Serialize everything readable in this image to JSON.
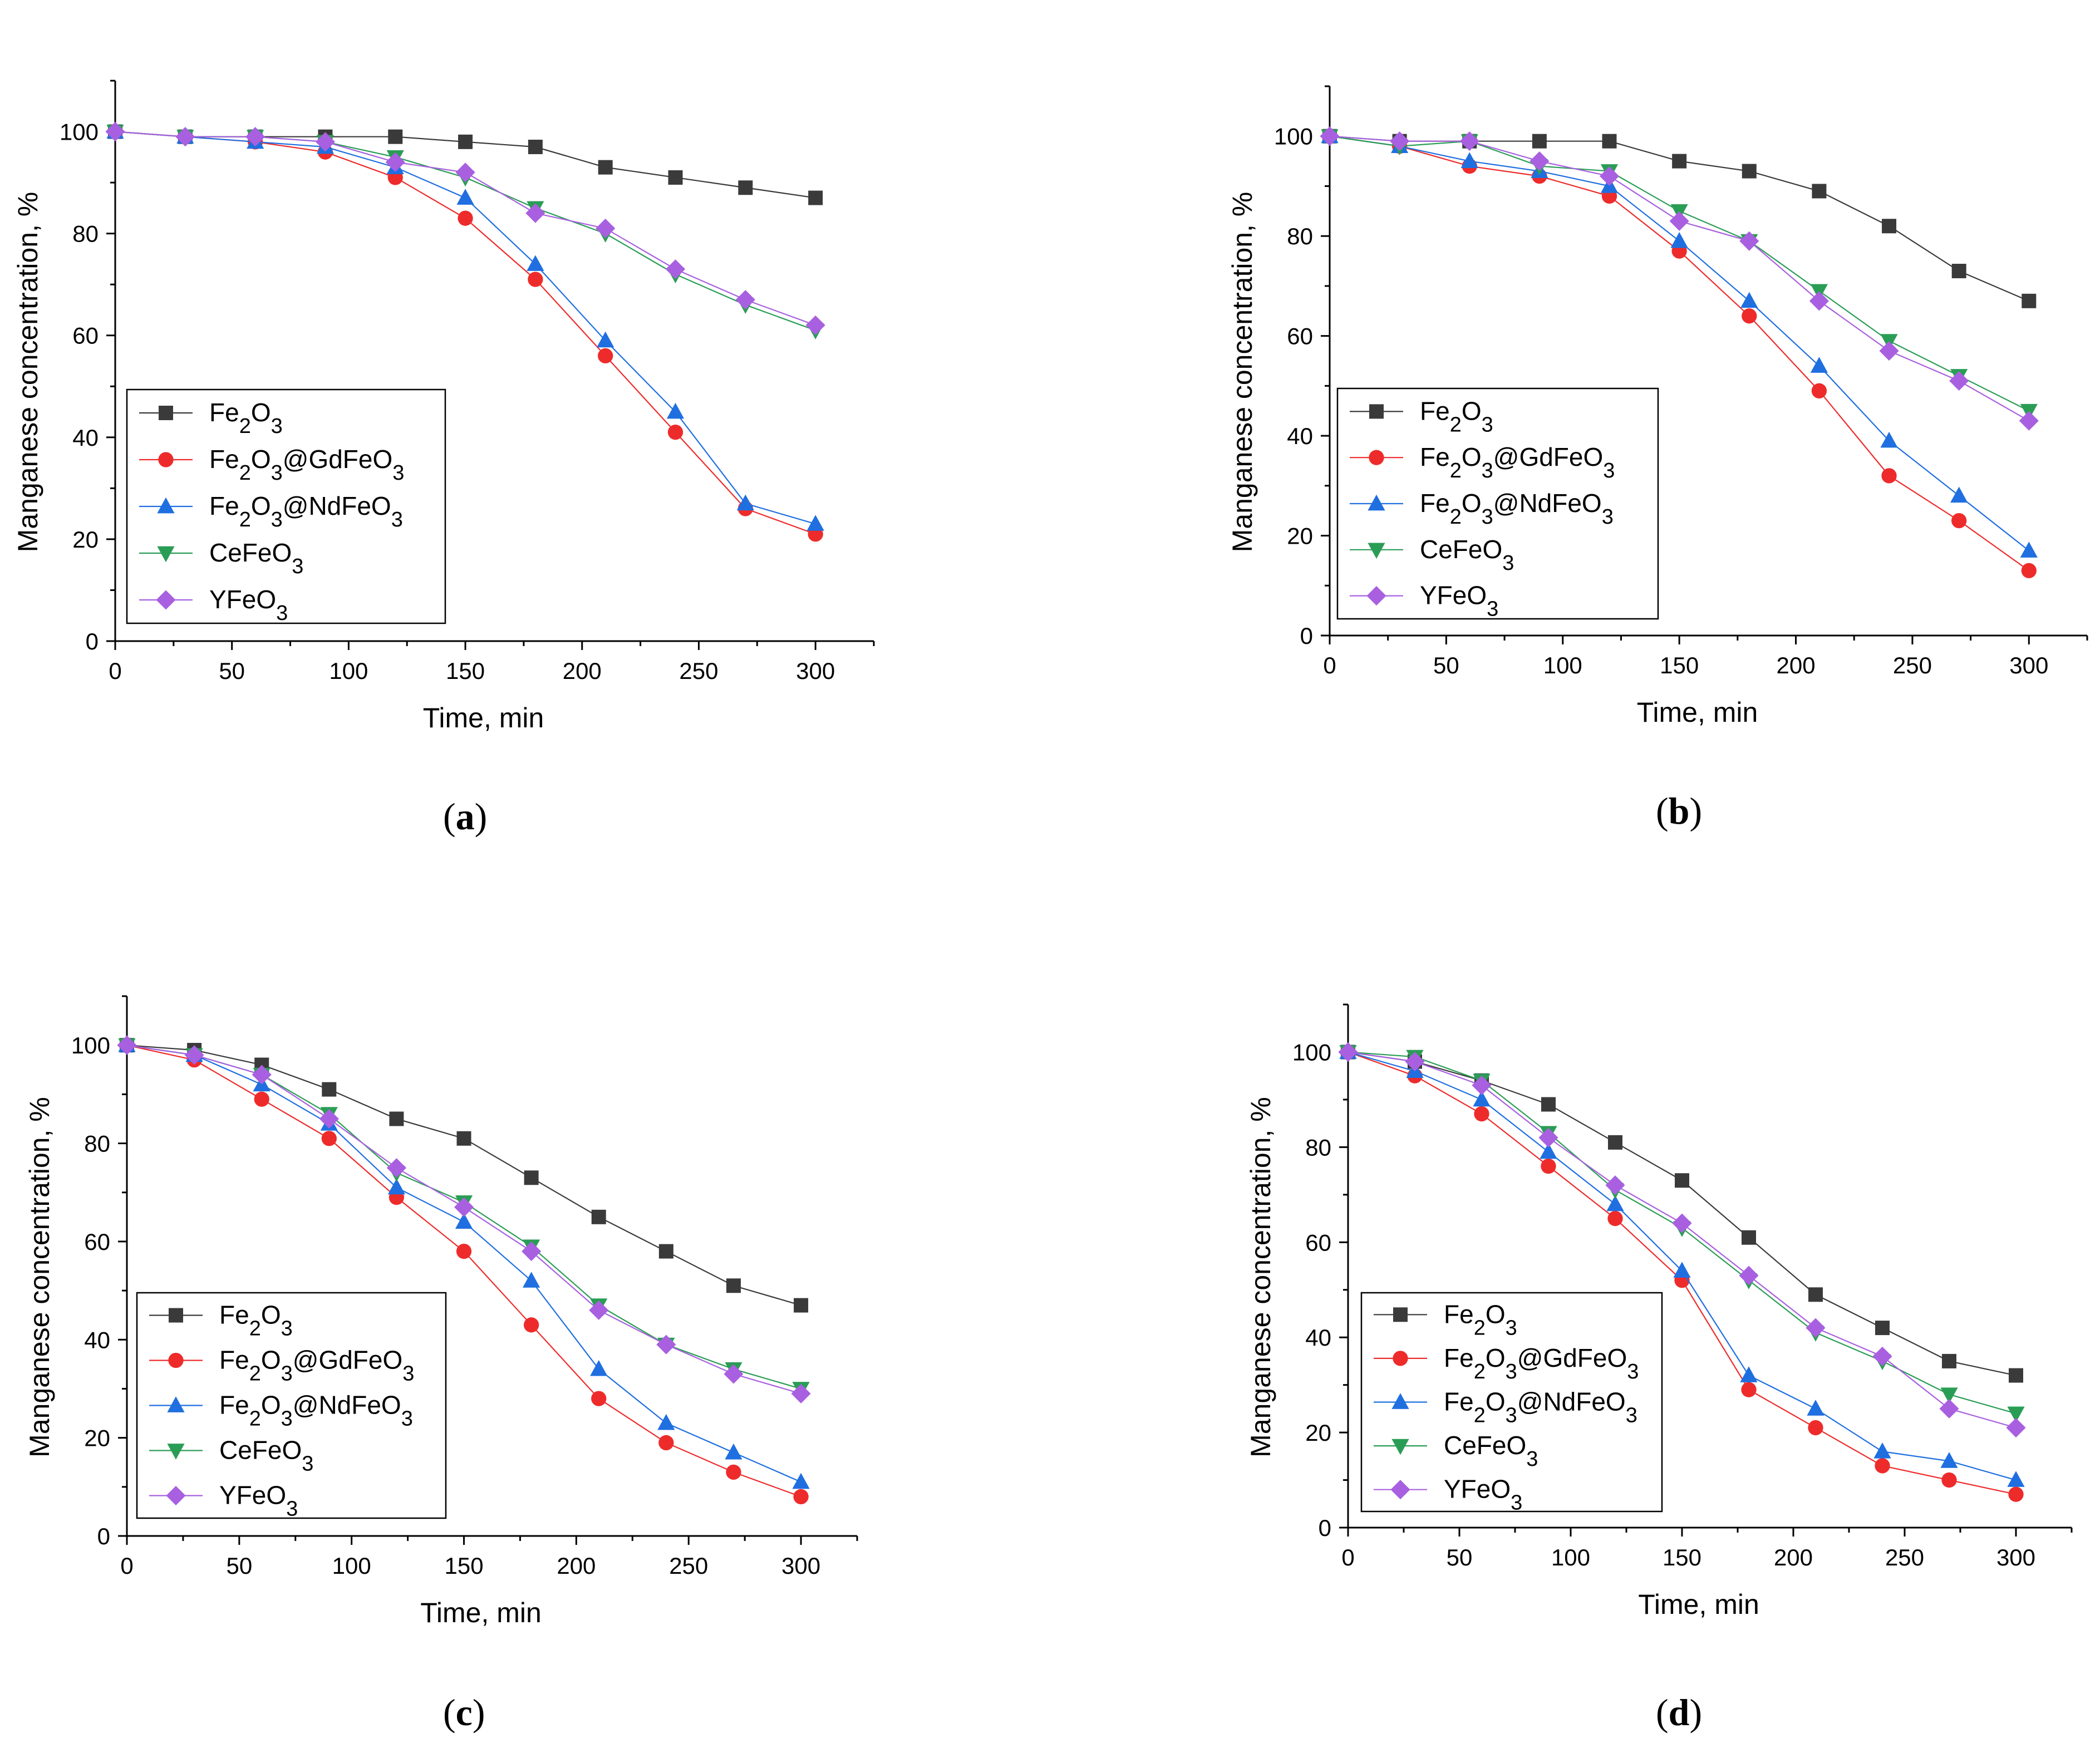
{
  "figure": {
    "captions": [
      "(a)",
      "(b)",
      "(c)",
      "(d)"
    ],
    "caption_letters": [
      "a",
      "b",
      "c",
      "d"
    ],
    "colors": {
      "Fe2O3": "#3a3a3a",
      "Fe2O3@GdFeO3": "#ee2b2b",
      "Fe2O3@NdFeO3": "#1f6fe0",
      "CeFeO3": "#2a9d55",
      "YFeO3": "#a860e0"
    }
  },
  "chart_data": [
    {
      "type": "line",
      "panel": "a",
      "xlabel": "Time, min",
      "ylabel": "Manganese concentration, %",
      "xlim": [
        0,
        325
      ],
      "ylim": [
        0,
        110
      ],
      "xticks": [
        0,
        50,
        100,
        150,
        200,
        250,
        300
      ],
      "yticks": [
        0,
        20,
        40,
        60,
        80,
        100
      ],
      "legend_position": "lower-left",
      "x": [
        0,
        30,
        60,
        90,
        120,
        150,
        180,
        210,
        240,
        270,
        300
      ],
      "series": [
        {
          "key": "Fe2O3",
          "name": "Fe2O3",
          "marker": "square",
          "values": [
            100,
            99,
            99,
            99,
            99,
            98,
            97,
            93,
            91,
            89,
            87
          ]
        },
        {
          "key": "Fe2O3@GdFeO3",
          "name": "Fe2O3@GdFeO3",
          "marker": "circle",
          "values": [
            100,
            99,
            98,
            96,
            91,
            83,
            71,
            56,
            41,
            26,
            21
          ]
        },
        {
          "key": "Fe2O3@NdFeO3",
          "name": "Fe2O3@NdFeO3",
          "marker": "triangle-up",
          "values": [
            100,
            99,
            98,
            97,
            93,
            87,
            74,
            59,
            45,
            27,
            23
          ]
        },
        {
          "key": "CeFeO3",
          "name": "CeFeO3",
          "marker": "triangle-down",
          "values": [
            100,
            99,
            99,
            98,
            95,
            91,
            85,
            80,
            72,
            66,
            61
          ]
        },
        {
          "key": "YFeO3",
          "name": "YFeO3",
          "marker": "diamond",
          "values": [
            100,
            99,
            99,
            98,
            94,
            92,
            84,
            81,
            73,
            67,
            62
          ]
        }
      ]
    },
    {
      "type": "line",
      "panel": "b",
      "xlabel": "Time, min",
      "ylabel": "Manganese concentration, %",
      "xlim": [
        0,
        325
      ],
      "ylim": [
        0,
        110
      ],
      "xticks": [
        0,
        50,
        100,
        150,
        200,
        250,
        300
      ],
      "yticks": [
        0,
        20,
        40,
        60,
        80,
        100
      ],
      "legend_position": "lower-left",
      "x": [
        0,
        30,
        60,
        90,
        120,
        150,
        180,
        210,
        240,
        270,
        300
      ],
      "series": [
        {
          "key": "Fe2O3",
          "name": "Fe2O3",
          "marker": "square",
          "values": [
            100,
            99,
            99,
            99,
            99,
            95,
            93,
            89,
            82,
            73,
            67
          ]
        },
        {
          "key": "Fe2O3@GdFeO3",
          "name": "Fe2O3@GdFeO3",
          "marker": "circle",
          "values": [
            100,
            98,
            94,
            92,
            88,
            77,
            64,
            49,
            32,
            23,
            13
          ]
        },
        {
          "key": "Fe2O3@NdFeO3",
          "name": "Fe2O3@NdFeO3",
          "marker": "triangle-up",
          "values": [
            100,
            98,
            95,
            93,
            90,
            79,
            67,
            54,
            39,
            28,
            17
          ]
        },
        {
          "key": "CeFeO3",
          "name": "CeFeO3",
          "marker": "triangle-down",
          "values": [
            100,
            98,
            99,
            94,
            93,
            85,
            79,
            69,
            59,
            52,
            45
          ]
        },
        {
          "key": "YFeO3",
          "name": "YFeO3",
          "marker": "diamond",
          "values": [
            100,
            99,
            99,
            95,
            92,
            83,
            79,
            67,
            57,
            51,
            43
          ]
        }
      ]
    },
    {
      "type": "line",
      "panel": "c",
      "xlabel": "Time, min",
      "ylabel": "Manganese concentration, %",
      "xlim": [
        0,
        325
      ],
      "ylim": [
        0,
        110
      ],
      "xticks": [
        0,
        50,
        100,
        150,
        200,
        250,
        300
      ],
      "yticks": [
        0,
        20,
        40,
        60,
        80,
        100
      ],
      "legend_position": "lower-left",
      "x": [
        0,
        30,
        60,
        90,
        120,
        150,
        180,
        210,
        240,
        270,
        300
      ],
      "series": [
        {
          "key": "Fe2O3",
          "name": "Fe2O3",
          "marker": "square",
          "values": [
            100,
            99,
            96,
            91,
            85,
            81,
            73,
            65,
            58,
            51,
            47
          ]
        },
        {
          "key": "Fe2O3@GdFeO3",
          "name": "Fe2O3@GdFeO3",
          "marker": "circle",
          "values": [
            100,
            97,
            89,
            81,
            69,
            58,
            43,
            28,
            19,
            13,
            8
          ]
        },
        {
          "key": "Fe2O3@NdFeO3",
          "name": "Fe2O3@NdFeO3",
          "marker": "triangle-up",
          "values": [
            100,
            98,
            92,
            84,
            71,
            64,
            52,
            34,
            23,
            17,
            11
          ]
        },
        {
          "key": "CeFeO3",
          "name": "CeFeO3",
          "marker": "triangle-down",
          "values": [
            100,
            98,
            94,
            86,
            74,
            68,
            59,
            47,
            39,
            34,
            30
          ]
        },
        {
          "key": "YFeO3",
          "name": "YFeO3",
          "marker": "diamond",
          "values": [
            100,
            98,
            94,
            85,
            75,
            67,
            58,
            46,
            39,
            33,
            29
          ]
        }
      ]
    },
    {
      "type": "line",
      "panel": "d",
      "xlabel": "Time, min",
      "ylabel": "Manganese concentration, %",
      "xlim": [
        0,
        325
      ],
      "ylim": [
        0,
        110
      ],
      "xticks": [
        0,
        50,
        100,
        150,
        200,
        250,
        300
      ],
      "yticks": [
        0,
        20,
        40,
        60,
        80,
        100
      ],
      "legend_position": "lower-left",
      "x": [
        0,
        30,
        60,
        90,
        120,
        150,
        180,
        210,
        240,
        270,
        300
      ],
      "series": [
        {
          "key": "Fe2O3",
          "name": "Fe2O3",
          "marker": "square",
          "values": [
            100,
            98,
            94,
            89,
            81,
            73,
            61,
            49,
            42,
            35,
            32
          ]
        },
        {
          "key": "Fe2O3@GdFeO3",
          "name": "Fe2O3@GdFeO3",
          "marker": "circle",
          "values": [
            100,
            95,
            87,
            76,
            65,
            52,
            29,
            21,
            13,
            10,
            7
          ]
        },
        {
          "key": "Fe2O3@NdFeO3",
          "name": "Fe2O3@NdFeO3",
          "marker": "triangle-up",
          "values": [
            100,
            96,
            90,
            79,
            68,
            54,
            32,
            25,
            16,
            14,
            10
          ]
        },
        {
          "key": "CeFeO3",
          "name": "CeFeO3",
          "marker": "triangle-down",
          "values": [
            100,
            99,
            94,
            83,
            71,
            63,
            52,
            41,
            35,
            28,
            24
          ]
        },
        {
          "key": "YFeO3",
          "name": "YFeO3",
          "marker": "diamond",
          "values": [
            100,
            98,
            93,
            82,
            72,
            64,
            53,
            42,
            36,
            25,
            21
          ]
        }
      ]
    }
  ]
}
